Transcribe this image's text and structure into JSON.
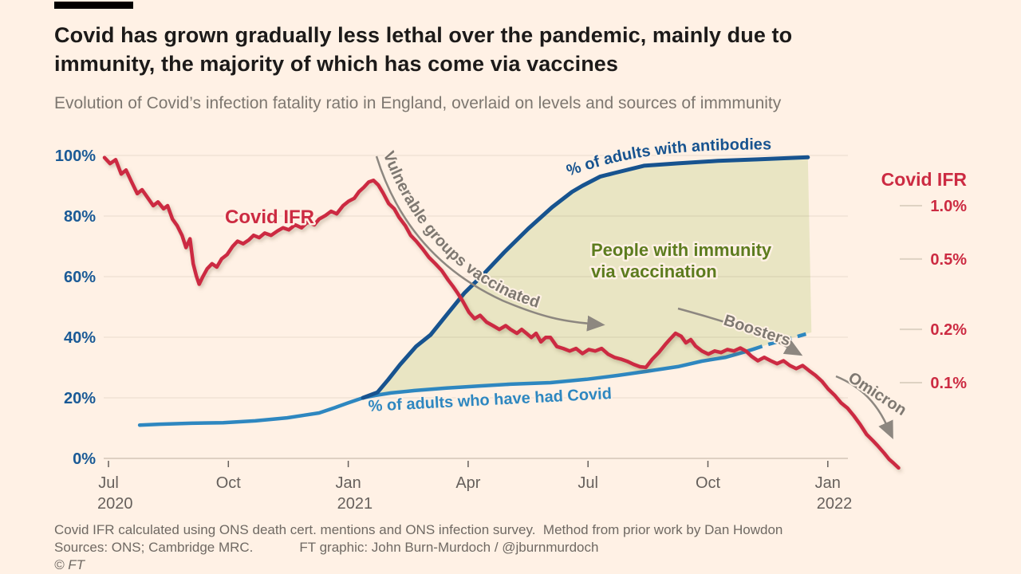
{
  "page": {
    "background": "#FFF1E5",
    "accent_bar_color": "#000000"
  },
  "header": {
    "title_line1": "Covid has grown gradually less lethal over the pandemic, mainly due to",
    "title_line2": "immunity, the majority of which has come via vaccines",
    "subtitle": "Evolution of Covid’s infection fatality ratio in England, overlaid on levels and sources of immmunity"
  },
  "footer": {
    "note": "Covid IFR calculated using ONS death cert. mentions and ONS infection survey.  Method from prior work by Dan Howdon",
    "sources": "Sources: ONS; Cambridge MRC.",
    "credit": "FT graphic: John Burn-Murdoch / @jburnmurdoch",
    "copyright": "© FT"
  },
  "chart_data": {
    "type": "line",
    "x_axis": {
      "months_per_tick": 3,
      "ticks": [
        {
          "label": "Jul",
          "year": "2020"
        },
        {
          "label": "Oct"
        },
        {
          "label": "Jan",
          "year": "2021"
        },
        {
          "label": "Apr"
        },
        {
          "label": "Jul"
        },
        {
          "label": "Oct"
        },
        {
          "label": "Jan",
          "year": "2022"
        }
      ]
    },
    "left_axis": {
      "unit": "%",
      "range": [
        0,
        100
      ],
      "tick_values": [
        100,
        80,
        60,
        40,
        20,
        0
      ],
      "tick_labels": [
        "100%",
        "80%",
        "60%",
        "40%",
        "20%",
        "0%"
      ],
      "label_color": "#1a5a96"
    },
    "right_axis": {
      "title": "Covid IFR",
      "scale": "log",
      "tick_values": [
        1.0,
        0.5,
        0.2,
        0.1
      ],
      "tick_labels": [
        "1.0%",
        "0.5%",
        "0.2%",
        "0.1%"
      ],
      "label_color": "#cc2b42"
    },
    "series": [
      {
        "id": "ifr",
        "name": "Covid IFR",
        "axis": "right",
        "color": "#cc2b42",
        "points": [
          [
            -0.1,
            1.87
          ],
          [
            0.04,
            1.73
          ],
          [
            0.18,
            1.82
          ],
          [
            0.32,
            1.51
          ],
          [
            0.44,
            1.59
          ],
          [
            0.58,
            1.36
          ],
          [
            0.72,
            1.17
          ],
          [
            0.84,
            1.23
          ],
          [
            0.98,
            1.11
          ],
          [
            1.12,
            1.0
          ],
          [
            1.24,
            1.05
          ],
          [
            1.38,
            0.96
          ],
          [
            1.48,
            1.0
          ],
          [
            1.6,
            0.84
          ],
          [
            1.72,
            0.77
          ],
          [
            1.84,
            0.68
          ],
          [
            1.94,
            0.58
          ],
          [
            2.04,
            0.65
          ],
          [
            2.12,
            0.47
          ],
          [
            2.2,
            0.4
          ],
          [
            2.27,
            0.36
          ],
          [
            2.37,
            0.4
          ],
          [
            2.47,
            0.44
          ],
          [
            2.59,
            0.47
          ],
          [
            2.71,
            0.45
          ],
          [
            2.83,
            0.5
          ],
          [
            2.97,
            0.53
          ],
          [
            3.11,
            0.59
          ],
          [
            3.23,
            0.63
          ],
          [
            3.37,
            0.61
          ],
          [
            3.51,
            0.64
          ],
          [
            3.63,
            0.68
          ],
          [
            3.77,
            0.66
          ],
          [
            3.91,
            0.7
          ],
          [
            4.07,
            0.68
          ],
          [
            4.23,
            0.72
          ],
          [
            4.37,
            0.75
          ],
          [
            4.51,
            0.73
          ],
          [
            4.67,
            0.78
          ],
          [
            4.83,
            0.75
          ],
          [
            4.99,
            0.81
          ],
          [
            5.15,
            0.78
          ],
          [
            5.27,
            0.84
          ],
          [
            5.43,
            0.88
          ],
          [
            5.57,
            0.93
          ],
          [
            5.71,
            0.9
          ],
          [
            5.87,
            1.0
          ],
          [
            6.01,
            1.06
          ],
          [
            6.15,
            1.1
          ],
          [
            6.27,
            1.2
          ],
          [
            6.39,
            1.27
          ],
          [
            6.51,
            1.36
          ],
          [
            6.63,
            1.39
          ],
          [
            6.75,
            1.31
          ],
          [
            6.87,
            1.18
          ],
          [
            7.01,
            1.03
          ],
          [
            7.15,
            0.96
          ],
          [
            7.27,
            0.86
          ],
          [
            7.43,
            0.77
          ],
          [
            7.56,
            0.68
          ],
          [
            7.7,
            0.63
          ],
          [
            7.86,
            0.57
          ],
          [
            8.02,
            0.51
          ],
          [
            8.18,
            0.47
          ],
          [
            8.34,
            0.43
          ],
          [
            8.5,
            0.38
          ],
          [
            8.62,
            0.35
          ],
          [
            8.74,
            0.32
          ],
          [
            8.86,
            0.29
          ],
          [
            9.02,
            0.25
          ],
          [
            9.16,
            0.23
          ],
          [
            9.3,
            0.24
          ],
          [
            9.46,
            0.22
          ],
          [
            9.62,
            0.21
          ],
          [
            9.78,
            0.2
          ],
          [
            9.94,
            0.21
          ],
          [
            10.06,
            0.2
          ],
          [
            10.22,
            0.19
          ],
          [
            10.34,
            0.2
          ],
          [
            10.46,
            0.19
          ],
          [
            10.58,
            0.18
          ],
          [
            10.7,
            0.19
          ],
          [
            10.82,
            0.17
          ],
          [
            10.94,
            0.18
          ],
          [
            11.06,
            0.18
          ],
          [
            11.22,
            0.16
          ],
          [
            11.38,
            0.156
          ],
          [
            11.54,
            0.151
          ],
          [
            11.7,
            0.156
          ],
          [
            11.86,
            0.146
          ],
          [
            12.02,
            0.154
          ],
          [
            12.18,
            0.151
          ],
          [
            12.34,
            0.156
          ],
          [
            12.5,
            0.145
          ],
          [
            12.66,
            0.139
          ],
          [
            12.82,
            0.136
          ],
          [
            12.98,
            0.132
          ],
          [
            13.14,
            0.127
          ],
          [
            13.3,
            0.123
          ],
          [
            13.45,
            0.122
          ],
          [
            13.61,
            0.136
          ],
          [
            13.77,
            0.148
          ],
          [
            13.93,
            0.164
          ],
          [
            14.05,
            0.176
          ],
          [
            14.19,
            0.19
          ],
          [
            14.33,
            0.183
          ],
          [
            14.45,
            0.168
          ],
          [
            14.57,
            0.175
          ],
          [
            14.69,
            0.161
          ],
          [
            14.85,
            0.151
          ],
          [
            15.01,
            0.145
          ],
          [
            15.17,
            0.151
          ],
          [
            15.33,
            0.148
          ],
          [
            15.49,
            0.154
          ],
          [
            15.65,
            0.151
          ],
          [
            15.81,
            0.157
          ],
          [
            15.95,
            0.151
          ],
          [
            16.09,
            0.141
          ],
          [
            16.25,
            0.133
          ],
          [
            16.41,
            0.139
          ],
          [
            16.57,
            0.133
          ],
          [
            16.73,
            0.128
          ],
          [
            16.89,
            0.133
          ],
          [
            17.05,
            0.125
          ],
          [
            17.21,
            0.12
          ],
          [
            17.37,
            0.125
          ],
          [
            17.53,
            0.117
          ],
          [
            17.69,
            0.11
          ],
          [
            17.85,
            0.102
          ],
          [
            18.01,
            0.092
          ],
          [
            18.17,
            0.085
          ],
          [
            18.33,
            0.077
          ],
          [
            18.49,
            0.072
          ],
          [
            18.65,
            0.065
          ],
          [
            18.81,
            0.058
          ],
          [
            18.97,
            0.051
          ],
          [
            19.13,
            0.047
          ],
          [
            19.25,
            0.044
          ],
          [
            19.41,
            0.04
          ],
          [
            19.53,
            0.037
          ],
          [
            19.65,
            0.035
          ],
          [
            19.77,
            0.033
          ]
        ]
      },
      {
        "id": "antibodies",
        "name": "% of adults with antibodies",
        "axis": "left",
        "color": "#17538f",
        "points": [
          [
            6.37,
            20.0
          ],
          [
            6.73,
            21.8
          ],
          [
            7.0,
            26.0
          ],
          [
            7.3,
            31.0
          ],
          [
            7.7,
            37.0
          ],
          [
            8.06,
            40.8
          ],
          [
            8.5,
            48.0
          ],
          [
            8.9,
            54.5
          ],
          [
            9.4,
            61.0
          ],
          [
            9.9,
            68.0
          ],
          [
            10.5,
            75.8
          ],
          [
            11.1,
            82.9
          ],
          [
            11.6,
            88.0
          ],
          [
            11.86,
            90.0
          ],
          [
            12.3,
            93.0
          ],
          [
            12.66,
            94.2
          ],
          [
            13.4,
            96.6
          ],
          [
            14.25,
            97.4
          ],
          [
            15.25,
            98.2
          ],
          [
            16.25,
            98.7
          ],
          [
            17.5,
            99.4
          ]
        ]
      },
      {
        "id": "had_covid",
        "name": "% of adults who have had Covid",
        "axis": "left",
        "color": "#2e87c0",
        "points_solid": [
          [
            0.78,
            11.0
          ],
          [
            1.28,
            11.3
          ],
          [
            2.08,
            11.6
          ],
          [
            2.87,
            11.8
          ],
          [
            3.67,
            12.4
          ],
          [
            4.47,
            13.4
          ],
          [
            5.27,
            15.0
          ],
          [
            5.67,
            16.8
          ],
          [
            6.01,
            18.4
          ],
          [
            6.37,
            20.0
          ],
          [
            6.67,
            20.8
          ],
          [
            7.07,
            21.6
          ],
          [
            7.66,
            22.4
          ],
          [
            8.46,
            23.2
          ],
          [
            9.26,
            23.9
          ],
          [
            10.06,
            24.5
          ],
          [
            11.06,
            25.0
          ],
          [
            11.96,
            26.1
          ],
          [
            12.75,
            27.4
          ],
          [
            13.45,
            28.7
          ],
          [
            14.25,
            30.3
          ],
          [
            14.85,
            32.1
          ],
          [
            15.45,
            33.4
          ],
          [
            15.95,
            35.3
          ],
          [
            16.15,
            36.1
          ]
        ],
        "points_dashed": [
          [
            16.15,
            36.1
          ],
          [
            16.45,
            37.4
          ],
          [
            16.85,
            38.9
          ],
          [
            17.25,
            40.3
          ],
          [
            17.59,
            41.6
          ]
        ]
      }
    ],
    "vaccination_area": {
      "label_line1": "People with immunity",
      "label_line2": "via vaccination",
      "fill": "#e9e5c3",
      "text_color": "#5d7c1f"
    },
    "in_plot_series_label": "Covid IFR",
    "annotations": [
      {
        "id": "vulnerable",
        "text": "Vulnerable groups vaccinated",
        "color": "#7e7871"
      },
      {
        "id": "boosters",
        "text": "Boosters",
        "color": "#7e7871"
      },
      {
        "id": "omicron",
        "text": "Omicron",
        "color": "#7e7871"
      }
    ]
  }
}
